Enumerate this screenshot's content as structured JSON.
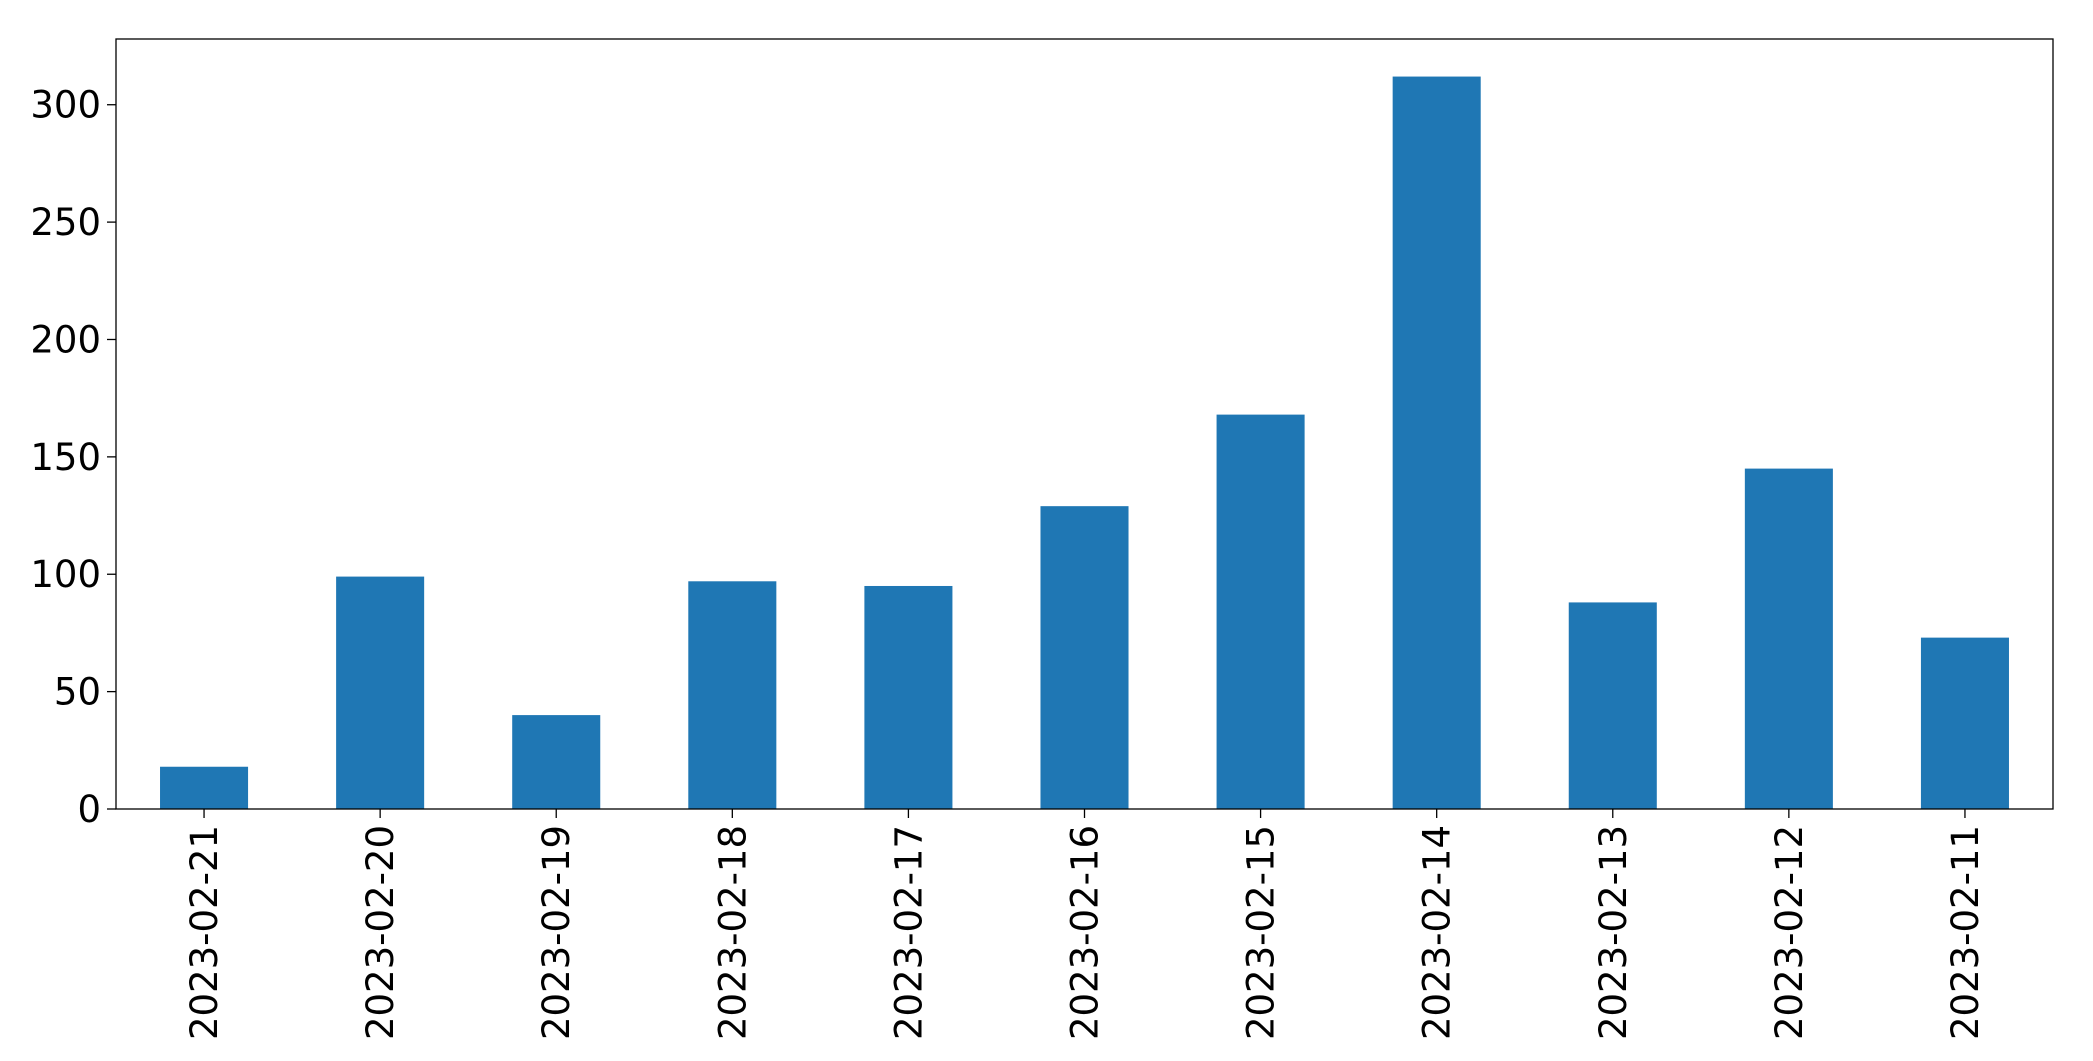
{
  "chart_data": {
    "type": "bar",
    "categories": [
      "2023-02-21",
      "2023-02-20",
      "2023-02-19",
      "2023-02-18",
      "2023-02-17",
      "2023-02-16",
      "2023-02-15",
      "2023-02-14",
      "2023-02-13",
      "2023-02-12",
      "2023-02-11"
    ],
    "values": [
      18,
      99,
      40,
      97,
      95,
      129,
      168,
      312,
      88,
      145,
      73
    ],
    "color": "#1f77b4",
    "ylim": [
      0,
      328
    ],
    "yticks": [
      0,
      50,
      100,
      150,
      200,
      250,
      300
    ],
    "grid": false
  }
}
